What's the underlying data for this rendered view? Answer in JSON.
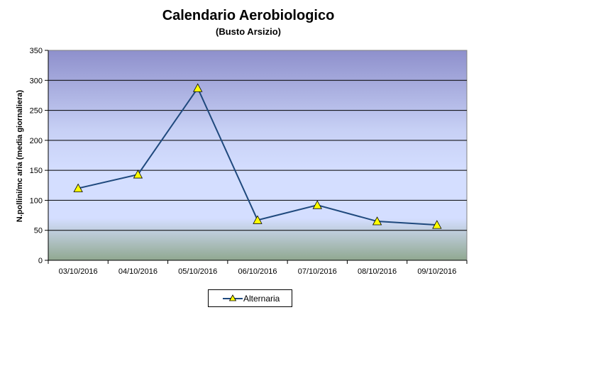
{
  "chart_data": {
    "type": "line",
    "title": "Calendario Aerobiologico",
    "subtitle": "(Busto Arsizio)",
    "ylabel": "N.pollini/mc aria (media giornaliera)",
    "xlabel": "",
    "categories": [
      "03/10/2016",
      "04/10/2016",
      "05/10/2016",
      "06/10/2016",
      "07/10/2016",
      "08/10/2016",
      "09/10/2016"
    ],
    "series": [
      {
        "name": "Alternaria",
        "values": [
          120,
          143,
          287,
          67,
          92,
          65,
          59
        ],
        "color": "#1F497D",
        "marker_color": "#FFFF00"
      }
    ],
    "ylim": [
      0,
      350
    ],
    "yticks": [
      0,
      50,
      100,
      150,
      200,
      250,
      300,
      350
    ],
    "grid": true,
    "legend_position": "bottom"
  }
}
